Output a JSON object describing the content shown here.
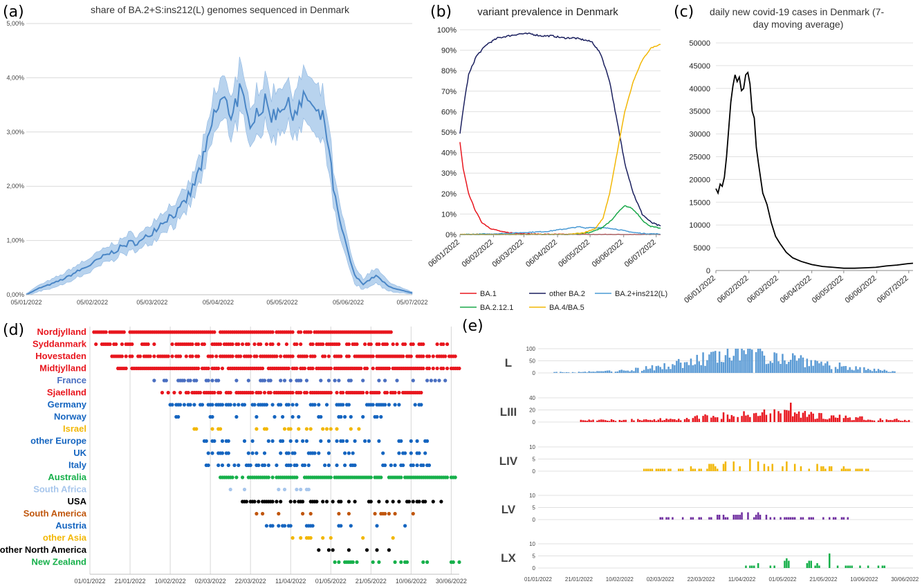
{
  "panels": {
    "a": {
      "label": "(a)"
    },
    "b": {
      "label": "(b)"
    },
    "c": {
      "label": "(c)"
    },
    "d": {
      "label": "(d)"
    },
    "e": {
      "label": "(e)"
    }
  },
  "colors": {
    "BA1": "#e8161e",
    "otherBA2": "#1a1f5e",
    "ins212": "#4a9ad4",
    "BA2121": "#1aa84a",
    "BA45": "#f2b705",
    "share_line": "#4a86c6",
    "share_band": "#b8d3ee",
    "denmark": "#e8161e",
    "europe": "#1565c0",
    "france": "#4a6fc1",
    "israel": "#f2b705",
    "australia": "#17b04b",
    "southafrica": "#a7c6ec",
    "usa": "#000000",
    "southamerica": "#c0560c",
    "L": "#5b9bd5",
    "LIII": "#e8161e",
    "LIV": "#f2b705",
    "LV": "#7030a0",
    "LX": "#17b04b"
  },
  "chart_data": [
    {
      "id": "a",
      "type": "area",
      "title": "share of BA.2+S:ins212(L) genomes sequenced in Denmark",
      "x_ticks": [
        "05/01/2022",
        "05/02/2022",
        "05/03/2022",
        "05/04/2022",
        "05/05/2022",
        "05/06/2022",
        "05/07/2022"
      ],
      "y_ticks": [
        "0,00%",
        "1,00%",
        "2,00%",
        "3,00%",
        "4,00%",
        "5,00%"
      ],
      "ylim": [
        0,
        5
      ],
      "series": [
        {
          "x_days": [
            0,
            6,
            12,
            18,
            24,
            30,
            36,
            42,
            48,
            54,
            60,
            66,
            72,
            78,
            84,
            88,
            92,
            96,
            100,
            104,
            108,
            112,
            116,
            120,
            124,
            128,
            132,
            136,
            140,
            144,
            146,
            150,
            154,
            158,
            164,
            170,
            176,
            181
          ],
          "values": [
            0.0,
            0.12,
            0.2,
            0.3,
            0.43,
            0.55,
            0.7,
            0.82,
            0.95,
            0.98,
            1.2,
            1.42,
            1.55,
            1.95,
            2.6,
            3.3,
            3.6,
            3.35,
            3.75,
            3.2,
            3.4,
            3.5,
            3.3,
            3.55,
            3.4,
            3.45,
            3.65,
            3.3,
            3.2,
            2.0,
            1.5,
            0.9,
            0.35,
            0.2,
            0.35,
            0.15,
            0.08,
            0.03
          ],
          "band": [
            0.02,
            0.06,
            0.08,
            0.1,
            0.12,
            0.13,
            0.13,
            0.14,
            0.15,
            0.15,
            0.16,
            0.18,
            0.2,
            0.22,
            0.28,
            0.35,
            0.4,
            0.38,
            0.42,
            0.38,
            0.4,
            0.42,
            0.4,
            0.42,
            0.42,
            0.42,
            0.45,
            0.42,
            0.42,
            0.35,
            0.3,
            0.25,
            0.15,
            0.1,
            0.15,
            0.08,
            0.05,
            0.02
          ]
        }
      ]
    },
    {
      "id": "b",
      "type": "line",
      "title": "variant prevalence in Denmark",
      "x_ticks": [
        "06/01/2022",
        "06/02/2022",
        "06/03/2022",
        "06/04/2022",
        "06/05/2022",
        "06/06/2022",
        "06/07/2022"
      ],
      "y_ticks": [
        "0%",
        "10%",
        "20%",
        "30%",
        "40%",
        "50%",
        "60%",
        "70%",
        "80%",
        "90%",
        "100%"
      ],
      "ylim": [
        0,
        100
      ],
      "legend": [
        "BA.1",
        "other BA.2",
        "BA.2+ins212(L)",
        "BA.2.12.1",
        "BA.4/BA.5"
      ],
      "series": [
        {
          "name": "BA.1",
          "x_days": [
            0,
            3,
            8,
            14,
            20,
            28,
            40,
            55,
            70,
            90,
            120,
            185
          ],
          "values": [
            45,
            32,
            20,
            12,
            6,
            3,
            1.2,
            0.5,
            0.2,
            0.1,
            0,
            0
          ]
        },
        {
          "name": "other BA.2",
          "x_days": [
            0,
            4,
            8,
            15,
            25,
            35,
            45,
            55,
            65,
            75,
            85,
            95,
            105,
            115,
            122,
            130,
            138,
            145,
            152,
            160,
            168,
            176,
            185
          ],
          "values": [
            49,
            65,
            78,
            87,
            93,
            96,
            97,
            98,
            98,
            97,
            97,
            96,
            96,
            95,
            94,
            88,
            75,
            55,
            35,
            20,
            10,
            6,
            4
          ]
        },
        {
          "name": "BA.2+ins212(L)",
          "x_days": [
            0,
            20,
            40,
            60,
            80,
            100,
            110,
            115,
            120,
            130,
            140,
            150,
            160,
            170,
            185
          ],
          "values": [
            0,
            0.2,
            0.5,
            1,
            1.5,
            3,
            3.8,
            3.2,
            3.5,
            3.3,
            3,
            2,
            1,
            0.5,
            0.2
          ]
        },
        {
          "name": "BA.2.12.1",
          "x_days": [
            0,
            100,
            120,
            130,
            140,
            146,
            152,
            158,
            164,
            170,
            176,
            185
          ],
          "values": [
            0,
            0,
            1,
            3,
            7,
            11,
            14,
            13,
            10,
            6,
            4,
            3
          ]
        },
        {
          "name": "BA.4/BA.5",
          "x_days": [
            0,
            100,
            115,
            125,
            132,
            138,
            145,
            152,
            160,
            168,
            176,
            185
          ],
          "values": [
            0,
            0,
            1,
            3,
            8,
            20,
            40,
            60,
            75,
            85,
            91,
            93
          ]
        }
      ]
    },
    {
      "id": "c",
      "type": "line",
      "title": "daily new covid-19 cases in Denmark (7-day  moving average)",
      "x_ticks": [
        "06/01/2022",
        "06/02/2022",
        "06/03/2022",
        "06/04/2022",
        "06/05/2022",
        "06/06/2022",
        "06/07/2022"
      ],
      "y_ticks": [
        "0",
        "5000",
        "10000",
        "15000",
        "20000",
        "25000",
        "30000",
        "35000",
        "40000",
        "45000",
        "50000"
      ],
      "ylim": [
        0,
        50000
      ],
      "series": [
        {
          "x_days": [
            0,
            2,
            4,
            6,
            8,
            10,
            12,
            14,
            16,
            18,
            20,
            22,
            24,
            26,
            28,
            30,
            32,
            34,
            36,
            38,
            40,
            44,
            48,
            52,
            56,
            60,
            66,
            72,
            80,
            90,
            100,
            110,
            120,
            130,
            140,
            150,
            160,
            170,
            180,
            185
          ],
          "values": [
            18000,
            17000,
            19000,
            18500,
            20500,
            25000,
            31000,
            37000,
            40500,
            43000,
            41500,
            42500,
            39500,
            40000,
            43000,
            43500,
            41000,
            35000,
            33500,
            27000,
            23500,
            17000,
            14500,
            10500,
            7500,
            6000,
            4000,
            2800,
            2000,
            1300,
            900,
            700,
            500,
            500,
            600,
            700,
            1000,
            1200,
            1500,
            1600
          ]
        }
      ]
    },
    {
      "id": "d",
      "type": "scatter",
      "x_ticks": [
        "01/01/2022",
        "21/01/2022",
        "10/02/2022",
        "02/03/2022",
        "22/03/2022",
        "11/04/2022",
        "01/05/2022",
        "21/05/2022",
        "10/06/2022",
        "30/06/2022"
      ],
      "rows": [
        {
          "name": "Nordjylland",
          "color": "#e8161e"
        },
        {
          "name": "Syddanmark",
          "color": "#e8161e"
        },
        {
          "name": "Hovestaden",
          "color": "#e8161e"
        },
        {
          "name": "Midtjylland",
          "color": "#e8161e"
        },
        {
          "name": "France",
          "color": "#4a6fc1"
        },
        {
          "name": "Sjaelland",
          "color": "#e8161e"
        },
        {
          "name": "Germany",
          "color": "#1565c0"
        },
        {
          "name": "Norway",
          "color": "#1565c0"
        },
        {
          "name": "Israel",
          "color": "#f2b705"
        },
        {
          "name": "other Europe",
          "color": "#1565c0"
        },
        {
          "name": "UK",
          "color": "#1565c0"
        },
        {
          "name": "Italy",
          "color": "#1565c0"
        },
        {
          "name": "Australia",
          "color": "#17b04b"
        },
        {
          "name": "South Africa",
          "color": "#a7c6ec"
        },
        {
          "name": "USA",
          "color": "#000000"
        },
        {
          "name": "South America",
          "color": "#c0560c"
        },
        {
          "name": "Austria",
          "color": "#1565c0"
        },
        {
          "name": "other Asia",
          "color": "#f2b705"
        },
        {
          "name": "other North America",
          "color": "#000000"
        },
        {
          "name": "New Zealand",
          "color": "#17b04b"
        }
      ]
    },
    {
      "id": "e",
      "type": "bar",
      "x_ticks": [
        "01/01/2022",
        "21/01/2022",
        "10/02/2022",
        "02/03/2022",
        "22/03/2022",
        "11/04/2022",
        "01/05/2022",
        "21/05/2022",
        "10/06/2022",
        "30/06/2022"
      ],
      "lineages": [
        {
          "name": "L",
          "color": "#5b9bd5",
          "y_ticks": [
            "0",
            "50",
            "100"
          ],
          "ymax": 100
        },
        {
          "name": "LIII",
          "color": "#e8161e",
          "y_ticks": [
            "0",
            "20",
            "40"
          ],
          "ymax": 40
        },
        {
          "name": "LIV",
          "color": "#f2b705",
          "y_ticks": [
            "0",
            "5",
            "10"
          ],
          "ymax": 10
        },
        {
          "name": "LV",
          "color": "#7030a0",
          "y_ticks": [
            "0",
            "5",
            "10"
          ],
          "ymax": 10
        },
        {
          "name": "LX",
          "color": "#17b04b",
          "y_ticks": [
            "0",
            "5",
            "10"
          ],
          "ymax": 10
        }
      ]
    }
  ]
}
